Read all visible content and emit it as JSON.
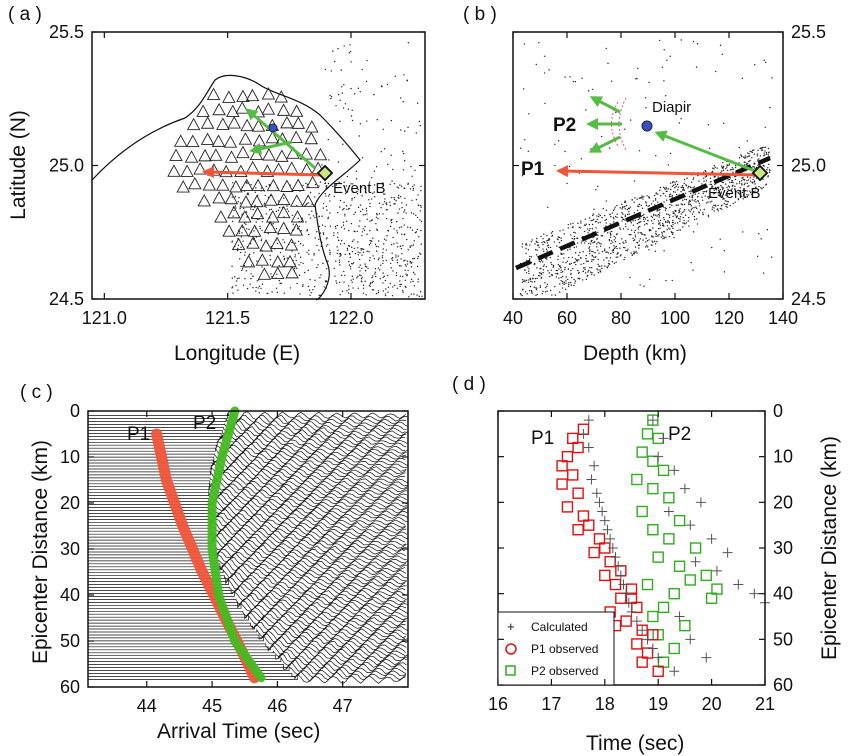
{
  "chart_data": [
    {
      "panel": "(a)",
      "type": "scatter",
      "xlabel": "Longitude (E)",
      "ylabel": "Latitude (N)",
      "xlim": [
        120.95,
        122.3
      ],
      "ylim": [
        24.5,
        25.5
      ],
      "x_ticks": [
        "121.0",
        "121.5",
        "122.0"
      ],
      "y_ticks": [
        "25.5",
        "25.0",
        "24.5"
      ],
      "event_label": "Event B",
      "event": {
        "lon": 121.87,
        "lat": 24.97
      },
      "arrow_p1": {
        "from": [
          121.87,
          24.97
        ],
        "to": [
          121.35,
          24.96
        ],
        "color": "#f0553a"
      },
      "green_paths": [
        {
          "from": [
            121.73,
            24.99
          ],
          "to": [
            121.55,
            25.12
          ]
        },
        {
          "from": [
            121.65,
            25.06
          ],
          "to": [
            121.6,
            25.2
          ]
        }
      ],
      "diapir": {
        "lon": 121.66,
        "lat": 25.14
      },
      "seismic_stations": "triangles",
      "background_events": "dots"
    },
    {
      "panel": "(b)",
      "type": "scatter",
      "xlabel": "Depth (km)",
      "ylabel": "",
      "xlim": [
        40,
        140
      ],
      "ylim": [
        24.5,
        25.5
      ],
      "x_ticks": [
        "40",
        "60",
        "80",
        "100",
        "120",
        "140"
      ],
      "y_ticks": [
        "25.5",
        "25.0",
        "24.5"
      ],
      "labels": {
        "p1": "P1",
        "p2": "P2",
        "diapir": "Diapir",
        "event": "Event B"
      },
      "event": {
        "depth": 133,
        "lat": 24.96
      },
      "diapir": {
        "depth": 90,
        "lat": 25.14
      },
      "slab_line": [
        [
          42,
          24.61
        ],
        [
          136,
          25.02
        ]
      ],
      "arrow_p1": {
        "from": [
          133,
          24.96
        ],
        "to": [
          58,
          24.99
        ]
      }
    },
    {
      "panel": "(c)",
      "type": "line",
      "xlabel": "Arrival Time (sec)",
      "ylabel": "Epicenter Distance (km)",
      "xlim": [
        43.1,
        48.0
      ],
      "ylim": [
        0,
        60
      ],
      "x_ticks": [
        "44",
        "45",
        "46",
        "47"
      ],
      "y_ticks": [
        "0",
        "10",
        "20",
        "30",
        "40",
        "50",
        "60"
      ],
      "series_labels": {
        "p1": "P1",
        "p2": "P2"
      },
      "p1_curve": {
        "distance": [
          5,
          15,
          25,
          35,
          45,
          52,
          58
        ],
        "time": [
          44.15,
          44.3,
          44.55,
          44.85,
          45.2,
          45.45,
          45.65
        ],
        "color": "#f0553a"
      },
      "p2_curve": {
        "distance": [
          0,
          10,
          20,
          30,
          40,
          50,
          58
        ],
        "time": [
          45.35,
          45.15,
          45.0,
          45.0,
          45.1,
          45.35,
          45.75
        ],
        "color": "#44bb22"
      },
      "trace_count": 90
    },
    {
      "panel": "(d)",
      "type": "scatter",
      "xlabel": "Time (sec)",
      "ylabel": "Epicenter Distance (km)",
      "xlim": [
        16,
        21
      ],
      "ylim": [
        0,
        60
      ],
      "x_ticks": [
        "16",
        "17",
        "18",
        "19",
        "20",
        "21"
      ],
      "y_ticks": [
        "0",
        "10",
        "20",
        "30",
        "40",
        "50",
        "60"
      ],
      "series_labels": {
        "p1": "P1",
        "p2": "P2"
      },
      "legend": {
        "position": "bottom-left",
        "entries": [
          "Calculated",
          "P1 observed",
          "P2 observed"
        ]
      },
      "series": [
        {
          "name": "Calculated",
          "color": "#555555",
          "points": [
            [
              17.7,
              2
            ],
            [
              17.6,
              5
            ],
            [
              17.7,
              8
            ],
            [
              17.8,
              12
            ],
            [
              17.75,
              15
            ],
            [
              17.85,
              18
            ],
            [
              17.9,
              20
            ],
            [
              17.95,
              22
            ],
            [
              18.0,
              24
            ],
            [
              18.05,
              26
            ],
            [
              18.1,
              28
            ],
            [
              18.15,
              30
            ],
            [
              18.2,
              32
            ],
            [
              18.25,
              34
            ],
            [
              18.3,
              36
            ],
            [
              18.35,
              38
            ],
            [
              18.4,
              40
            ],
            [
              18.45,
              42
            ],
            [
              18.5,
              44
            ],
            [
              18.6,
              46
            ],
            [
              18.7,
              48
            ],
            [
              18.8,
              50
            ],
            [
              18.9,
              52
            ],
            [
              19.0,
              54
            ],
            [
              18.9,
              2
            ],
            [
              19.1,
              6
            ],
            [
              19.0,
              10
            ],
            [
              19.3,
              13
            ],
            [
              19.5,
              17
            ],
            [
              19.8,
              20
            ],
            [
              19.2,
              22
            ],
            [
              19.6,
              25
            ],
            [
              20.0,
              28
            ],
            [
              20.3,
              31
            ],
            [
              19.7,
              33
            ],
            [
              20.1,
              35
            ],
            [
              20.5,
              38
            ],
            [
              20.8,
              40
            ],
            [
              21.0,
              42
            ],
            [
              19.4,
              45
            ],
            [
              19.6,
              50
            ],
            [
              19.9,
              54
            ],
            [
              19.3,
              57
            ]
          ]
        },
        {
          "name": "P1 observed",
          "color": "#dd1111",
          "points": [
            [
              17.6,
              4
            ],
            [
              17.4,
              6
            ],
            [
              17.5,
              8
            ],
            [
              17.3,
              10
            ],
            [
              17.2,
              12
            ],
            [
              17.4,
              14
            ],
            [
              17.2,
              16
            ],
            [
              17.5,
              18
            ],
            [
              17.3,
              21
            ],
            [
              17.6,
              23
            ],
            [
              17.7,
              25
            ],
            [
              17.5,
              26
            ],
            [
              17.9,
              28
            ],
            [
              18.0,
              30
            ],
            [
              17.8,
              31
            ],
            [
              18.1,
              33
            ],
            [
              18.3,
              35
            ],
            [
              18.0,
              36
            ],
            [
              18.2,
              38
            ],
            [
              18.5,
              39
            ],
            [
              18.3,
              41
            ],
            [
              18.6,
              43
            ],
            [
              18.1,
              44
            ],
            [
              18.4,
              46
            ],
            [
              18.7,
              48
            ],
            [
              18.9,
              49
            ],
            [
              18.6,
              51
            ],
            [
              18.8,
              53
            ],
            [
              18.7,
              55
            ],
            [
              19.0,
              57
            ],
            [
              18.5,
              41
            ],
            [
              18.2,
              47
            ]
          ]
        },
        {
          "name": "P2 observed",
          "color": "#33aa22",
          "points": [
            [
              18.9,
              2
            ],
            [
              18.8,
              5
            ],
            [
              19.0,
              6
            ],
            [
              18.7,
              9
            ],
            [
              18.9,
              11
            ],
            [
              19.1,
              13
            ],
            [
              18.6,
              15
            ],
            [
              18.9,
              17
            ],
            [
              19.2,
              19
            ],
            [
              18.7,
              22
            ],
            [
              19.4,
              24
            ],
            [
              18.9,
              26
            ],
            [
              19.2,
              28
            ],
            [
              19.7,
              30
            ],
            [
              19.0,
              32
            ],
            [
              19.4,
              34
            ],
            [
              19.9,
              36
            ],
            [
              18.8,
              38
            ],
            [
              19.3,
              40
            ],
            [
              20.0,
              41
            ],
            [
              19.1,
              43
            ],
            [
              18.9,
              45
            ],
            [
              19.5,
              47
            ],
            [
              19.0,
              49
            ],
            [
              19.3,
              52
            ],
            [
              19.1,
              55
            ],
            [
              20.1,
              39
            ],
            [
              19.6,
              37
            ]
          ]
        }
      ]
    }
  ]
}
